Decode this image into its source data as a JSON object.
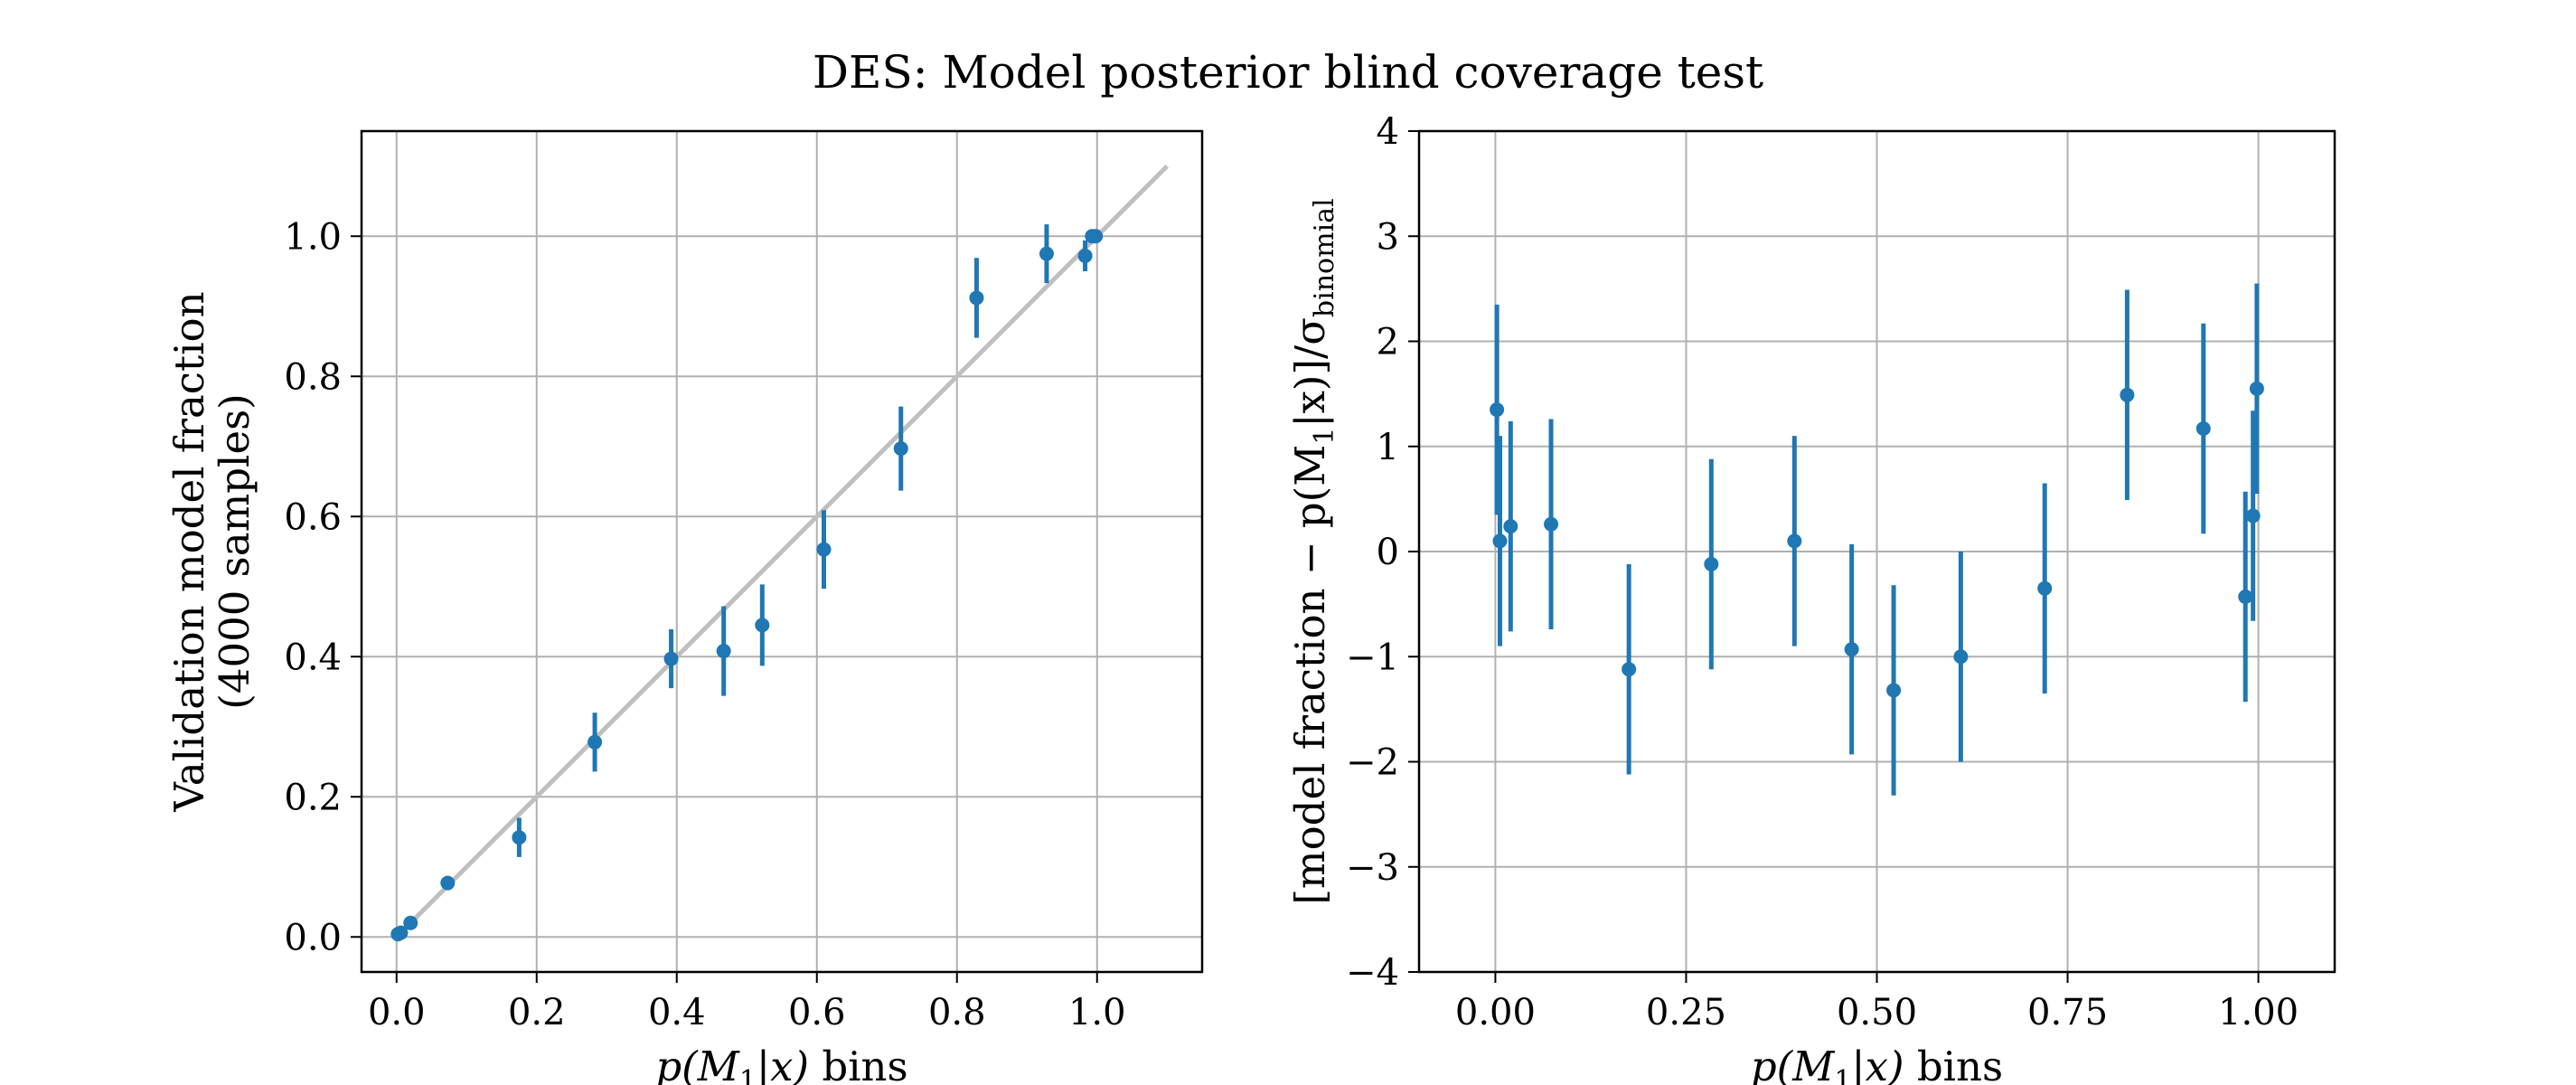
{
  "figure_title": "DES: Model posterior blind coverage test",
  "colors": {
    "points": "#1f77b4",
    "reference_line": "#bfbfbf",
    "grid": "#b0b0b0"
  },
  "chart_data": [
    {
      "type": "scatter",
      "title": "",
      "xlabel_prefix": "p(M",
      "xlabel_sub": "1",
      "xlabel_suffix": "|x)",
      "xlabel_tail": " bins",
      "ylabel_lines": [
        "Validation model fraction",
        "(4000 samples)"
      ],
      "xlim": [
        -0.05,
        1.15
      ],
      "ylim": [
        -0.05,
        1.15
      ],
      "xticks": [
        0.0,
        0.2,
        0.4,
        0.6,
        0.8,
        1.0
      ],
      "xtick_labels": [
        "0.0",
        "0.2",
        "0.4",
        "0.6",
        "0.8",
        "1.0"
      ],
      "yticks": [
        0.0,
        0.2,
        0.4,
        0.6,
        0.8,
        1.0
      ],
      "ytick_labels": [
        "0.0",
        "0.2",
        "0.4",
        "0.6",
        "0.8",
        "1.0"
      ],
      "grid": true,
      "reference_line": {
        "x": [
          0.0,
          1.1
        ],
        "y": [
          0.0,
          1.1
        ]
      },
      "series": [
        {
          "name": "validation fraction",
          "x": [
            0.002,
            0.006,
            0.02,
            0.073,
            0.175,
            0.283,
            0.392,
            0.467,
            0.522,
            0.61,
            0.72,
            0.828,
            0.928,
            0.983,
            0.993,
            0.998
          ],
          "y": [
            0.004,
            0.006,
            0.02,
            0.077,
            0.142,
            0.278,
            0.397,
            0.408,
            0.445,
            0.553,
            0.697,
            0.912,
            0.975,
            0.972,
            1.0,
            1.0
          ],
          "err": [
            0.005,
            0.005,
            0.008,
            0.01,
            0.028,
            0.042,
            0.042,
            0.064,
            0.058,
            0.056,
            0.06,
            0.057,
            0.042,
            0.022,
            0.01,
            0.004
          ]
        }
      ]
    },
    {
      "type": "scatter",
      "title": "",
      "xlabel_prefix": "p(M",
      "xlabel_sub": "1",
      "xlabel_suffix": "|x)",
      "xlabel_tail": " bins",
      "ylabel_main": "[model fraction − p(M",
      "ylabel_sub1": "1",
      "ylabel_mid": "|x)]/σ",
      "ylabel_sub2": "binomial",
      "xlim": [
        -0.1,
        1.1
      ],
      "ylim": [
        -4,
        4
      ],
      "xticks": [
        0.0,
        0.25,
        0.5,
        0.75,
        1.0
      ],
      "xtick_labels": [
        "0.00",
        "0.25",
        "0.50",
        "0.75",
        "1.00"
      ],
      "yticks": [
        -4,
        -3,
        -2,
        -1,
        0,
        1,
        2,
        3,
        4
      ],
      "ytick_labels": [
        "−4",
        "−3",
        "−2",
        "−1",
        "0",
        "1",
        "2",
        "3",
        "4"
      ],
      "grid": true,
      "series": [
        {
          "name": "normalized residual",
          "x": [
            0.002,
            0.006,
            0.02,
            0.073,
            0.175,
            0.283,
            0.392,
            0.467,
            0.522,
            0.61,
            0.72,
            0.828,
            0.928,
            0.983,
            0.993,
            0.998
          ],
          "y": [
            1.35,
            0.1,
            0.24,
            0.26,
            -1.12,
            -0.12,
            0.1,
            -0.93,
            -1.32,
            -1.0,
            -0.35,
            1.49,
            1.17,
            -0.43,
            0.34,
            1.55
          ],
          "err": [
            1.0,
            1.0,
            1.0,
            1.0,
            1.0,
            1.0,
            1.0,
            1.0,
            1.0,
            1.0,
            1.0,
            1.0,
            1.0,
            1.0,
            1.0,
            1.0
          ]
        }
      ]
    }
  ]
}
